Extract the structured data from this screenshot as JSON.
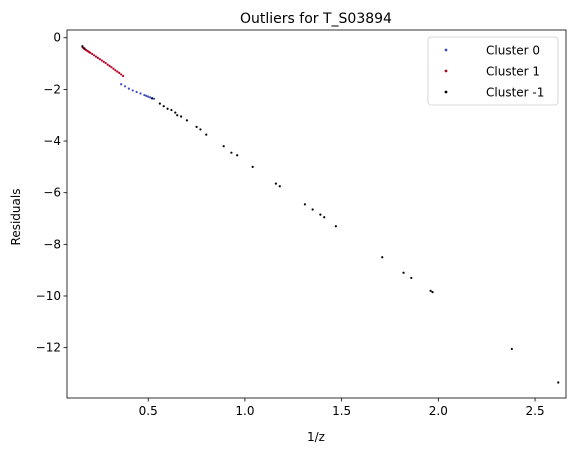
{
  "chart_data": {
    "type": "scatter",
    "title": "Outliers for T_S03894",
    "xlabel": "1/z",
    "ylabel": "Residuals",
    "xlim": [
      0.08,
      2.66
    ],
    "ylim": [
      -13.95,
      0.3
    ],
    "xticks": [
      0.5,
      1.0,
      1.5,
      2.0,
      2.5
    ],
    "xtick_labels": [
      "0.5",
      "1.0",
      "1.5",
      "2.0",
      "2.5"
    ],
    "yticks": [
      0,
      -2,
      -4,
      -6,
      -8,
      -10,
      -12
    ],
    "ytick_labels": [
      "0",
      "−2",
      "−4",
      "−6",
      "−8",
      "−10",
      "−12"
    ],
    "grid": false,
    "legend_position": "top-right",
    "series": [
      {
        "name": "Cluster 0",
        "color": "#3b4cc0",
        "x": [
          0.36,
          0.38,
          0.4,
          0.42,
          0.44,
          0.46,
          0.48,
          0.49,
          0.5,
          0.51,
          0.52,
          0.53
        ],
        "y": [
          -1.8,
          -1.88,
          -1.97,
          -2.04,
          -2.1,
          -2.16,
          -2.22,
          -2.25,
          -2.28,
          -2.31,
          -2.34,
          -2.36
        ]
      },
      {
        "name": "Cluster 1",
        "color": "#b40426",
        "x": [
          0.16,
          0.165,
          0.17,
          0.175,
          0.18,
          0.185,
          0.19,
          0.195,
          0.2,
          0.21,
          0.22,
          0.23,
          0.24,
          0.25,
          0.26,
          0.27,
          0.28,
          0.29,
          0.3,
          0.31,
          0.32,
          0.33,
          0.34,
          0.35,
          0.36,
          0.37
        ],
        "y": [
          -0.36,
          -0.4,
          -0.43,
          -0.46,
          -0.48,
          -0.51,
          -0.53,
          -0.56,
          -0.58,
          -0.63,
          -0.68,
          -0.73,
          -0.78,
          -0.83,
          -0.88,
          -0.93,
          -0.98,
          -1.04,
          -1.09,
          -1.14,
          -1.2,
          -1.26,
          -1.31,
          -1.36,
          -1.42,
          -1.48
        ]
      },
      {
        "name": "Cluster -1",
        "color": "#000000",
        "x": [
          0.16,
          0.17,
          0.52,
          0.56,
          0.58,
          0.6,
          0.62,
          0.64,
          0.65,
          0.67,
          0.7,
          0.75,
          0.77,
          0.8,
          0.89,
          0.93,
          0.96,
          1.04,
          1.16,
          1.18,
          1.31,
          1.35,
          1.39,
          1.41,
          1.47,
          1.71,
          1.82,
          1.86,
          1.96,
          1.97,
          2.38,
          2.62
        ],
        "y": [
          -0.33,
          -0.41,
          -2.35,
          -2.55,
          -2.65,
          -2.75,
          -2.8,
          -2.9,
          -3.0,
          -3.05,
          -3.2,
          -3.45,
          -3.55,
          -3.75,
          -4.2,
          -4.45,
          -4.55,
          -5.0,
          -5.65,
          -5.75,
          -6.45,
          -6.65,
          -6.85,
          -6.95,
          -7.3,
          -8.5,
          -9.1,
          -9.3,
          -9.8,
          -9.85,
          -12.05,
          -13.35
        ]
      }
    ]
  }
}
